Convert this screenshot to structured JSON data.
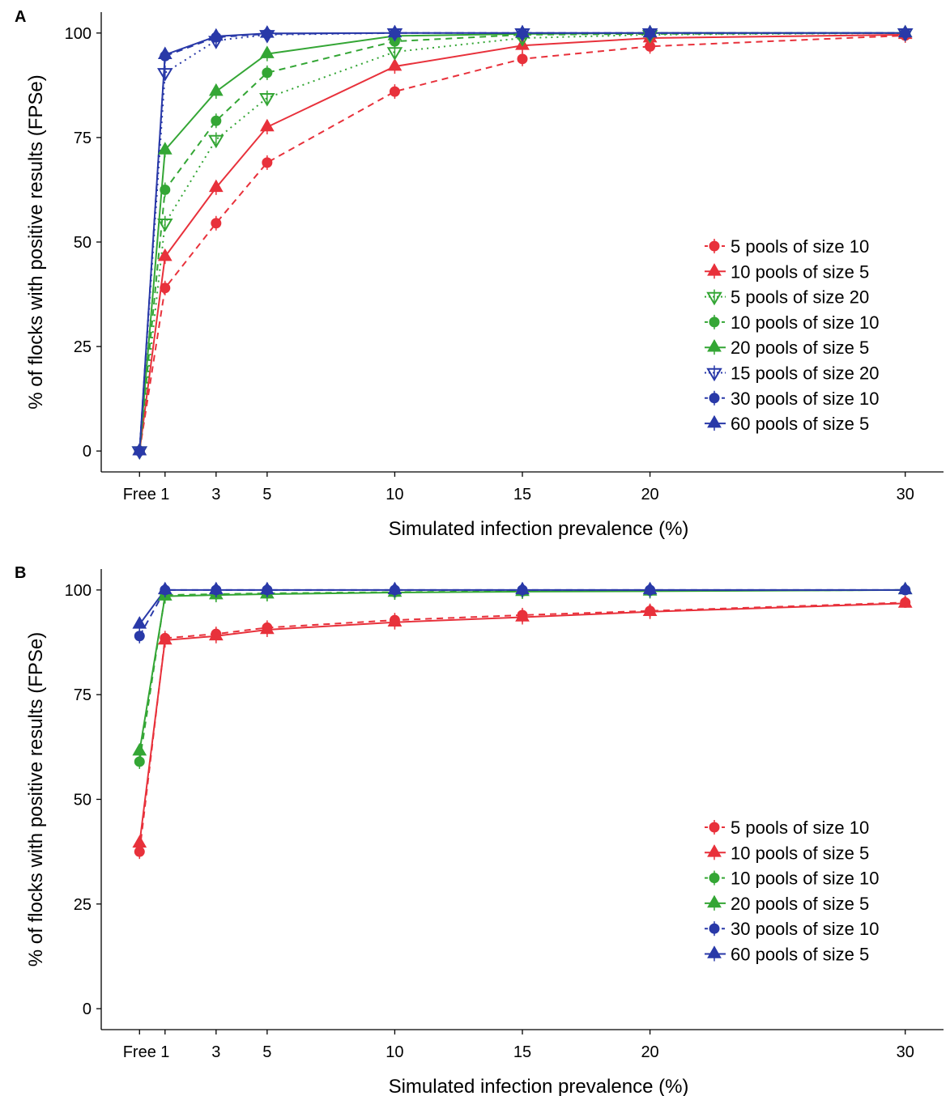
{
  "chart_data": [
    {
      "panel_label": "A",
      "type": "line",
      "xlabel": "Simulated infection prevalence (%)",
      "ylabel": "% of flocks with positive results (FPSe)",
      "x_ticks": [
        {
          "value": 0,
          "label": "Free"
        },
        {
          "value": 1,
          "label": "1"
        },
        {
          "value": 3,
          "label": "3"
        },
        {
          "value": 5,
          "label": "5"
        },
        {
          "value": 10,
          "label": "10"
        },
        {
          "value": 15,
          "label": "15"
        },
        {
          "value": 20,
          "label": "20"
        },
        {
          "value": 30,
          "label": "30"
        }
      ],
      "y_ticks": [
        0,
        25,
        50,
        75,
        100
      ],
      "xlim": [
        -1.5,
        31.5
      ],
      "ylim": [
        -5,
        105
      ],
      "grid": false,
      "legend_position": "right",
      "x": [
        0,
        1,
        3,
        5,
        10,
        15,
        20,
        30
      ],
      "series": [
        {
          "name": "5 pools of size 10",
          "color": "#e8313b",
          "marker": "circle",
          "line": "dashed",
          "values": [
            0,
            39,
            54.5,
            69,
            86,
            93.8,
            96.8,
            99.4
          ]
        },
        {
          "name": "10 pools of size 5",
          "color": "#e8313b",
          "marker": "triangle",
          "line": "solid",
          "values": [
            0,
            46.5,
            63,
            77.5,
            92,
            97,
            98.8,
            99.6
          ]
        },
        {
          "name": "5 pools of size 20",
          "color": "#34a635",
          "marker": "triangle-down-open",
          "line": "dotted",
          "values": [
            0,
            54.5,
            74.5,
            84.5,
            95.5,
            98.8,
            99.6,
            100
          ]
        },
        {
          "name": "10 pools of size 10",
          "color": "#34a635",
          "marker": "circle",
          "line": "dashed",
          "values": [
            0,
            62.5,
            79,
            90.5,
            98,
            99.6,
            99.8,
            100
          ]
        },
        {
          "name": "20 pools of size 5",
          "color": "#34a635",
          "marker": "triangle",
          "line": "solid",
          "values": [
            0,
            72,
            86,
            95,
            99.3,
            99.8,
            100,
            100
          ]
        },
        {
          "name": "15 pools of size 20",
          "color": "#2939a8",
          "marker": "triangle-down-open",
          "line": "dotted",
          "values": [
            0,
            90.5,
            98.2,
            99.6,
            100,
            100,
            100,
            100
          ]
        },
        {
          "name": "30 pools of size 10",
          "color": "#2939a8",
          "marker": "circle",
          "line": "dashed",
          "values": [
            0,
            94.5,
            99,
            99.8,
            100,
            100,
            100,
            100
          ]
        },
        {
          "name": "60 pools of size 5",
          "color": "#2939a8",
          "marker": "triangle",
          "line": "solid",
          "values": [
            0,
            94.8,
            99.2,
            99.9,
            100,
            100,
            100,
            100
          ]
        }
      ]
    },
    {
      "panel_label": "B",
      "type": "line",
      "xlabel": "Simulated infection prevalence (%)",
      "ylabel": "% of flocks with positive results (FPSe)",
      "x_ticks": [
        {
          "value": 0,
          "label": "Free"
        },
        {
          "value": 1,
          "label": "1"
        },
        {
          "value": 3,
          "label": "3"
        },
        {
          "value": 5,
          "label": "5"
        },
        {
          "value": 10,
          "label": "10"
        },
        {
          "value": 15,
          "label": "15"
        },
        {
          "value": 20,
          "label": "20"
        },
        {
          "value": 30,
          "label": "30"
        }
      ],
      "y_ticks": [
        0,
        25,
        50,
        75,
        100
      ],
      "xlim": [
        -1.5,
        31.5
      ],
      "ylim": [
        -5,
        105
      ],
      "grid": false,
      "legend_position": "right",
      "x": [
        0,
        1,
        3,
        5,
        10,
        15,
        20,
        30
      ],
      "series": [
        {
          "name": "5 pools of size 10",
          "color": "#e8313b",
          "marker": "circle",
          "line": "dashed",
          "values": [
            37.5,
            88.5,
            89.5,
            91,
            92.8,
            94,
            95,
            97
          ]
        },
        {
          "name": "10 pools of size 5",
          "color": "#e8313b",
          "marker": "triangle",
          "line": "solid",
          "values": [
            39.5,
            88,
            89,
            90.5,
            92.3,
            93.5,
            94.8,
            96.8
          ]
        },
        {
          "name": "10 pools of size 10",
          "color": "#34a635",
          "marker": "circle",
          "line": "dashed",
          "values": [
            59,
            98.8,
            99,
            99.2,
            99.5,
            99.7,
            99.8,
            100
          ]
        },
        {
          "name": "20 pools of size 5",
          "color": "#34a635",
          "marker": "triangle",
          "line": "solid",
          "values": [
            61.5,
            98.5,
            98.8,
            99,
            99.4,
            99.6,
            99.7,
            100
          ]
        },
        {
          "name": "30 pools of size 10",
          "color": "#2939a8",
          "marker": "circle",
          "line": "dashed",
          "values": [
            89,
            100,
            100,
            100,
            100,
            100,
            100,
            100
          ]
        },
        {
          "name": "60 pools of size 5",
          "color": "#2939a8",
          "marker": "triangle",
          "line": "solid",
          "values": [
            91.8,
            100,
            100,
            100,
            100,
            100,
            100,
            100
          ]
        }
      ]
    }
  ]
}
